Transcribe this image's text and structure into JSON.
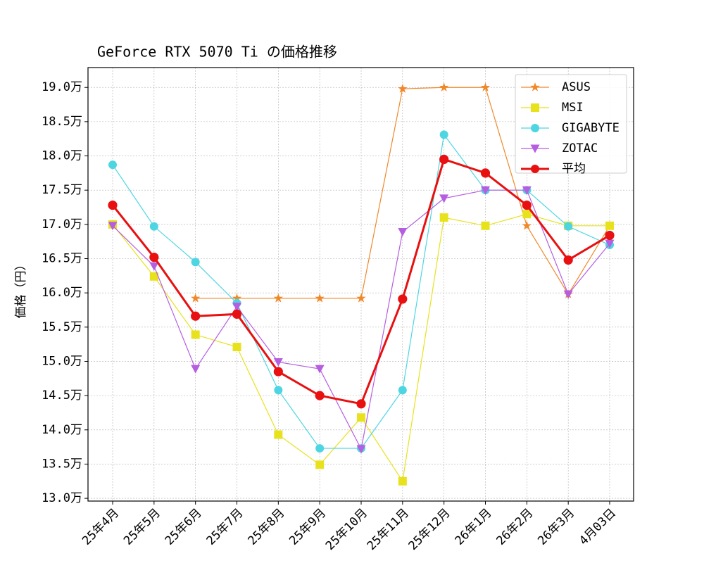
{
  "chart_data": {
    "type": "line",
    "title": "GeForce RTX 5070 Ti の価格推移",
    "y_label": "価格（円）",
    "categories": [
      "25年4月",
      "25年5月",
      "25年6月",
      "25年7月",
      "25年8月",
      "25年9月",
      "25年10月",
      "25年11月",
      "25年12月",
      "26年1月",
      "26年2月",
      "26年3月",
      "4月03日"
    ],
    "series": [
      {
        "name": "ASUS",
        "color": "#f0882a",
        "marker": "star",
        "linewidth": 1.2,
        "values": [
          null,
          null,
          15.92,
          15.92,
          15.92,
          15.92,
          15.92,
          18.98,
          19.0,
          19.0,
          16.98,
          15.98,
          16.98
        ]
      },
      {
        "name": "MSI",
        "color": "#e8e21c",
        "marker": "square",
        "linewidth": 1.2,
        "values": [
          17.0,
          16.24,
          15.39,
          15.21,
          13.93,
          13.49,
          14.18,
          13.25,
          17.1,
          16.98,
          17.15,
          16.98,
          16.98
        ]
      },
      {
        "name": "GIGABYTE",
        "color": "#4dd6e2",
        "marker": "circle",
        "linewidth": 1.2,
        "values": [
          17.87,
          16.97,
          16.45,
          15.85,
          14.58,
          13.73,
          13.73,
          14.58,
          18.31,
          17.5,
          17.5,
          16.97,
          16.7
        ]
      },
      {
        "name": "ZOTAC",
        "color": "#b65ee0",
        "marker": "triangle-down",
        "linewidth": 1.2,
        "values": [
          16.98,
          16.39,
          14.89,
          15.8,
          14.99,
          14.89,
          13.72,
          16.89,
          17.38,
          17.5,
          17.5,
          15.98,
          16.72
        ]
      },
      {
        "name": "平均",
        "color": "#e81010",
        "marker": "circle",
        "linewidth": 3,
        "values": [
          17.28,
          16.52,
          15.66,
          15.69,
          14.85,
          14.5,
          14.38,
          15.91,
          17.95,
          17.75,
          17.28,
          16.48,
          16.84
        ]
      }
    ],
    "ylim": [
      12.96,
      19.29
    ],
    "yticks": [
      {
        "value": 13.0,
        "label": "13.0万"
      },
      {
        "value": 13.5,
        "label": "13.5万"
      },
      {
        "value": 14.0,
        "label": "14.0万"
      },
      {
        "value": 14.5,
        "label": "14.5万"
      },
      {
        "value": 15.0,
        "label": "15.0万"
      },
      {
        "value": 15.5,
        "label": "15.5万"
      },
      {
        "value": 16.0,
        "label": "16.0万"
      },
      {
        "value": 16.5,
        "label": "16.5万"
      },
      {
        "value": 17.0,
        "label": "17.0万"
      },
      {
        "value": 17.5,
        "label": "17.5万"
      },
      {
        "value": 18.0,
        "label": "18.0万"
      },
      {
        "value": 18.5,
        "label": "18.5万"
      },
      {
        "value": 19.0,
        "label": "19.0万"
      }
    ],
    "grid": true,
    "legend": "upper right"
  }
}
